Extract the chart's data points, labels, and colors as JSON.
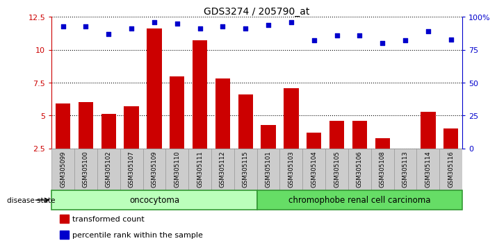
{
  "title": "GDS3274 / 205790_at",
  "samples": [
    "GSM305099",
    "GSM305100",
    "GSM305102",
    "GSM305107",
    "GSM305109",
    "GSM305110",
    "GSM305111",
    "GSM305112",
    "GSM305115",
    "GSM305101",
    "GSM305103",
    "GSM305104",
    "GSM305105",
    "GSM305106",
    "GSM305108",
    "GSM305113",
    "GSM305114",
    "GSM305116"
  ],
  "transformed_count": [
    5.9,
    6.0,
    5.1,
    5.7,
    11.6,
    8.0,
    10.7,
    7.8,
    6.6,
    4.3,
    7.1,
    3.7,
    4.6,
    4.6,
    3.3,
    2.3,
    5.3,
    4.0
  ],
  "percentile_rank": [
    93,
    93,
    87,
    91,
    96,
    95,
    91,
    93,
    91,
    94,
    96,
    82,
    86,
    86,
    80,
    82,
    89,
    83
  ],
  "n_oncocytoma": 9,
  "n_chromophobe": 9,
  "ylim_left": [
    2.5,
    12.5
  ],
  "ylim_right": [
    0,
    100
  ],
  "yticks_left": [
    2.5,
    5.0,
    7.5,
    10.0,
    12.5
  ],
  "ytick_left_labels": [
    "2.5",
    "5",
    "7.5",
    "10",
    "12.5"
  ],
  "yticks_right": [
    0,
    25,
    50,
    75,
    100
  ],
  "ytick_right_labels": [
    "0",
    "25",
    "50",
    "75",
    "100%"
  ],
  "bar_color": "#cc0000",
  "dot_color": "#0000cc",
  "onco_color": "#bbffbb",
  "chrom_color": "#66dd66",
  "group_border": "#339933",
  "disease_state_label": "disease state",
  "legend_bar_label": "transformed count",
  "legend_dot_label": "percentile rank within the sample",
  "bar_bottom": 2.5,
  "xlabel_bg": "#cccccc",
  "plot_bg": "#ffffff"
}
